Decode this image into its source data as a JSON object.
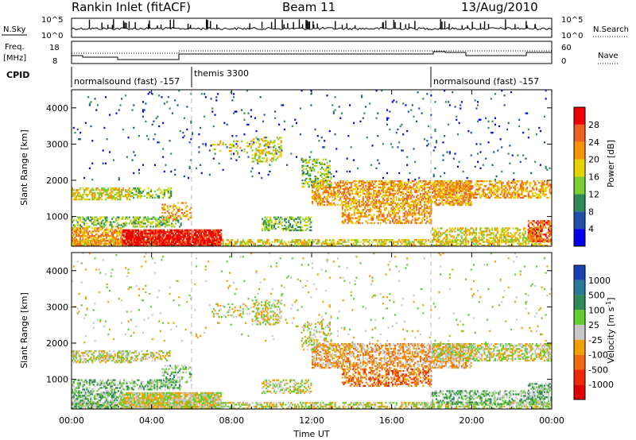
{
  "header": {
    "station": "Rankin Inlet (fitACF)",
    "beam": "Beam 11",
    "date": "13/Aug/2010"
  },
  "noise_panel": {
    "left_label": "N.Sky",
    "right_label": "N.Search",
    "left_ticks": [
      "10^5",
      "10^0"
    ],
    "right_ticks": [
      "10^5",
      "10^0"
    ]
  },
  "freq_panel": {
    "left_label_1": "Freq.",
    "left_label_2": "[MHz]",
    "right_label": "Nave",
    "left_ticks": [
      "18",
      "8"
    ],
    "right_ticks": [
      "60",
      "0"
    ]
  },
  "cpid": {
    "label": "CPID",
    "segments": [
      {
        "text": "normalsound (fast) -157",
        "start_hour": 0
      },
      {
        "text": "themis 3300",
        "start_hour": 6
      },
      {
        "text": "normalsound (fast) -157",
        "start_hour": 18
      }
    ]
  },
  "x_axis": {
    "label": "Time UT",
    "ticks": [
      "00:00",
      "04:00",
      "08:00",
      "12:00",
      "16:00",
      "20:00",
      "00:00"
    ],
    "tick_hours": [
      0,
      4,
      8,
      12,
      16,
      20,
      24
    ]
  },
  "chart_data": [
    {
      "type": "heatmap",
      "name": "power",
      "ylabel": "Slant Range [km]",
      "yticks": [
        1000,
        2000,
        3000,
        4000
      ],
      "ylim": [
        180,
        4500
      ],
      "xlim": [
        0,
        24
      ],
      "colorbar": {
        "label": "Power [dB]",
        "ticks": [
          "4",
          "8",
          "12",
          "16",
          "20",
          "24",
          "28"
        ],
        "colors": [
          "#0000ee",
          "#1f4fa8",
          "#2e8b57",
          "#7ccd32",
          "#e6d200",
          "#f59400",
          "#f06020",
          "#ee0000"
        ]
      }
    },
    {
      "type": "heatmap",
      "name": "velocity",
      "ylabel": "Slant Range [km]",
      "yticks": [
        1000,
        2000,
        3000,
        4000
      ],
      "ylim": [
        180,
        4500
      ],
      "xlim": [
        0,
        24
      ],
      "colorbar": {
        "label": "Velocity [m s^-1]",
        "ticks": [
          "1000",
          "500",
          "100",
          "25",
          "-25",
          "-100",
          "-500",
          "-1000"
        ],
        "colors": [
          "#1a3fb0",
          "#2a7a9a",
          "#2e8b57",
          "#66cc33",
          "#c8c8c8",
          "#f0a000",
          "#f06a10",
          "#ee2a00",
          "#e00000"
        ]
      }
    }
  ]
}
